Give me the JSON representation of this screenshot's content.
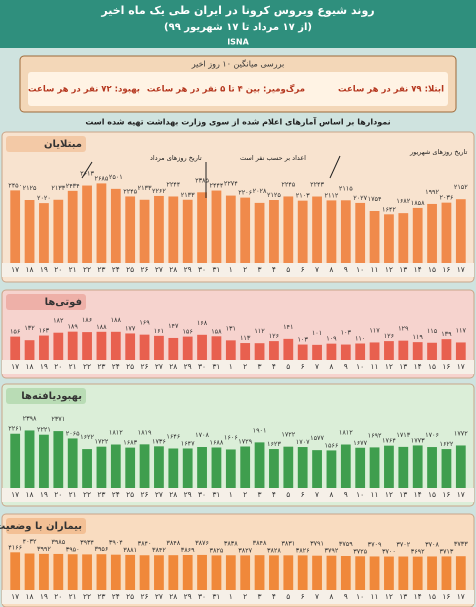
{
  "header": {
    "title": "روند شیوع ویروس کرونا در ایران طی یک ماه اخیر",
    "subtitle": "(از ۱۷ مرداد تا ۱۷ شهریور ۹۹)",
    "source": "ISNA"
  },
  "summary": {
    "heading": "بررسی میانگین ۱۰ روز اخیر",
    "items": [
      "ابتلا: ۷۹ نفر در هر ساعت",
      "مرگ‌ومیر: بین ۴ تا ۵ نفر در هر ساعت",
      "بهبود: ۷۲ نفر در هر ساعت"
    ]
  },
  "note": "نمودارها بر اساس آمارهای اعلام شده از سوی وزارت بهداشت تهیه شده است",
  "chart_data": [
    {
      "type": "bar",
      "title": "مبتلایان",
      "color": "#f08a4b",
      "ylim": [
        0,
        2800
      ],
      "annotations": [
        "تاریخ روزهای مرداد",
        "اعداد بر حسب نفر است",
        "تاریخ روزهای شهریور"
      ],
      "categories": [
        "۱۷",
        "۱۸",
        "۱۹",
        "۲۰",
        "۲۱",
        "۲۲",
        "۲۳",
        "۲۴",
        "۲۵",
        "۲۶",
        "۲۷",
        "۲۸",
        "۲۹",
        "۳۰",
        "۳۱",
        "۱",
        "۲",
        "۳",
        "۴",
        "۵",
        "۶",
        "۷",
        "۸",
        "۹",
        "۱۰",
        "۱۱",
        "۱۲",
        "۱۳",
        "۱۴",
        "۱۵",
        "۱۶",
        "۱۷"
      ],
      "values": [
        2450,
        2125,
        2020,
        2133,
        2434,
        2613,
        2685,
        2501,
        2245,
        2133,
        2262,
        2244,
        2133,
        2385,
        2444,
        2274,
        2206,
        2028,
        2125,
        2245,
        2103,
        2243,
        2112,
        2115,
        2027,
        1754,
        1642,
        1682,
        1858,
        1992,
        2036,
        2152
      ],
      "value_labels": [
        "۲۴۵۰",
        "۲۱۲۵",
        "۲۰۲۰",
        "۲۱۳۳",
        "۲۴۳۴",
        "۲۶۱۳",
        "۲۶۸۵",
        "۲۵۰۱",
        "۲۲۴۵",
        "۲۱۳۳",
        "۲۲۶۲",
        "۲۲۴۴",
        "۲۱۳۳",
        "۲۳۸۵",
        "۲۴۴۴",
        "۲۲۷۴",
        "۲۲۰۶",
        "۲۰۲۸",
        "۲۱۲۵",
        "۲۲۴۵",
        "۲۱۰۳",
        "۲۲۴۳",
        "۲۱۱۲",
        "۲۱۱۵",
        "۲۰۲۷",
        "۱۷۵۴",
        "۱۶۴۲",
        "۱۶۸۲",
        "۱۸۵۸",
        "۱۹۹۲",
        "۲۰۳۶",
        "۲۱۵۲"
      ]
    },
    {
      "type": "bar",
      "title": "فوتی‌ها",
      "color": "#e8604f",
      "ylim": [
        0,
        200
      ],
      "categories": [
        "۱۷",
        "۱۸",
        "۱۹",
        "۲۰",
        "۲۱",
        "۲۲",
        "۲۳",
        "۲۴",
        "۲۵",
        "۲۶",
        "۲۷",
        "۲۸",
        "۲۹",
        "۳۰",
        "۳۱",
        "۱",
        "۲",
        "۳",
        "۴",
        "۵",
        "۶",
        "۷",
        "۸",
        "۹",
        "۱۰",
        "۱۱",
        "۱۲",
        "۱۳",
        "۱۴",
        "۱۵",
        "۱۶",
        "۱۷"
      ],
      "values": [
        156,
        132,
        163,
        182,
        189,
        186,
        188,
        188,
        177,
        169,
        161,
        147,
        156,
        168,
        158,
        131,
        113,
        112,
        126,
        141,
        103,
        101,
        109,
        103,
        110,
        117,
        126,
        129,
        119,
        115,
        139,
        117
      ],
      "value_labels": [
        "۱۵۶",
        "۱۳۲",
        "۱۶۳",
        "۱۸۲",
        "۱۸۹",
        "۱۸۶",
        "۱۸۸",
        "۱۸۸",
        "۱۷۷",
        "۱۶۹",
        "۱۶۱",
        "۱۴۷",
        "۱۵۶",
        "۱۶۸",
        "۱۵۸",
        "۱۳۱",
        "۱۱۳",
        "۱۱۲",
        "۱۲۶",
        "۱۴۱",
        "۱۰۳",
        "۱۰۱",
        "۱۰۹",
        "۱۰۳",
        "۱۱۰",
        "۱۱۷",
        "۱۲۶",
        "۱۲۹",
        "۱۱۹",
        "۱۱۵",
        "۱۳۹",
        "۱۱۷"
      ]
    },
    {
      "type": "bar",
      "title": "بهبودیافته‌ها",
      "color": "#3f9e4e",
      "ylim": [
        0,
        2500
      ],
      "categories": [
        "۱۷",
        "۱۸",
        "۱۹",
        "۲۰",
        "۲۱",
        "۲۲",
        "۲۳",
        "۲۴",
        "۲۵",
        "۲۶",
        "۲۷",
        "۲۸",
        "۲۹",
        "۳۰",
        "۳۱",
        "۱",
        "۲",
        "۳",
        "۴",
        "۵",
        "۶",
        "۷",
        "۸",
        "۹",
        "۱۰",
        "۱۱",
        "۱۲",
        "۱۳",
        "۱۴",
        "۱۵",
        "۱۶",
        "۱۷"
      ],
      "values": [
        2261,
        2398,
        2221,
        2371,
        2065,
        1622,
        1722,
        1812,
        1683,
        1819,
        1736,
        1646,
        1647,
        1708,
        1688,
        1606,
        1729,
        1901,
        1623,
        1722,
        1707,
        1577,
        1566,
        1812,
        1677,
        1692,
        1764,
        1713,
        1773,
        1706,
        1622,
        1772
      ],
      "value_labels": [
        "۲۲۶۱",
        "۲۳۹۸",
        "۲۲۲۱",
        "۲۳۷۱",
        "۲۰۶۵",
        "۱۶۲۲",
        "۱۷۲۲",
        "۱۸۱۲",
        "۱۶۸۳",
        "۱۸۱۹",
        "۱۷۳۶",
        "۱۶۴۶",
        "۱۶۴۷",
        "۱۷۰۸",
        "۱۶۸۸",
        "۱۶۰۶",
        "۱۷۲۹",
        "۱۹۰۱",
        "۱۶۲۳",
        "۱۷۲۲",
        "۱۷۰۷",
        "۱۵۷۷",
        "۱۵۶۶",
        "۱۸۱۲",
        "۱۶۷۷",
        "۱۶۹۲",
        "۱۷۶۴",
        "۱۷۱۳",
        "۱۷۷۳",
        "۱۷۰۶",
        "۱۶۲۲",
        "۱۷۷۲"
      ]
    },
    {
      "type": "bar",
      "title": "بیماران با وضعیت حاد",
      "color": "#f0883a",
      "ylim": [
        0,
        4200
      ],
      "categories": [
        "۱۷",
        "۱۸",
        "۱۹",
        "۲۰",
        "۲۱",
        "۲۲",
        "۲۳",
        "۲۴",
        "۲۵",
        "۲۶",
        "۲۷",
        "۲۸",
        "۲۹",
        "۳۰",
        "۳۱",
        "۱",
        "۲",
        "۳",
        "۴",
        "۵",
        "۶",
        "۷",
        "۸",
        "۹",
        "۱۰",
        "۱۱",
        "۱۲",
        "۱۳",
        "۱۴",
        "۱۵",
        "۱۶",
        "۱۷"
      ],
      "values": [
        4166,
        4032,
        3992,
        3985,
        3950,
        3934,
        3956,
        3904,
        3881,
        3840,
        3842,
        3848,
        3869,
        3876,
        3825,
        3838,
        3827,
        3848,
        3828,
        3831,
        3826,
        3791,
        3792,
        3759,
        3725,
        3709,
        3700,
        3702,
        3692,
        3708,
        3713,
        3733
      ],
      "value_labels": [
        "۴۱۶۶",
        "۴۰۳۲",
        "۳۹۹۲",
        "۳۹۸۵",
        "۳۹۵۰",
        "۳۹۳۴",
        "۳۹۵۶",
        "۳۹۰۴",
        "۳۸۸۱",
        "۳۸۴۰",
        "۳۸۴۲",
        "۳۸۴۸",
        "۳۸۶۹",
        "۳۸۷۶",
        "۳۸۲۵",
        "۳۸۳۸",
        "۳۸۲۷",
        "۳۸۴۸",
        "۳۸۲۸",
        "۳۸۳۱",
        "۳۸۲۶",
        "۳۷۹۱",
        "۳۷۹۲",
        "۳۷۵۹",
        "۳۷۲۵",
        "۳۷۰۹",
        "۳۷۰۰",
        "۳۷۰۲",
        "۳۶۹۲",
        "۳۷۰۸",
        "۳۷۱۳",
        "۳۷۳۳"
      ]
    }
  ]
}
